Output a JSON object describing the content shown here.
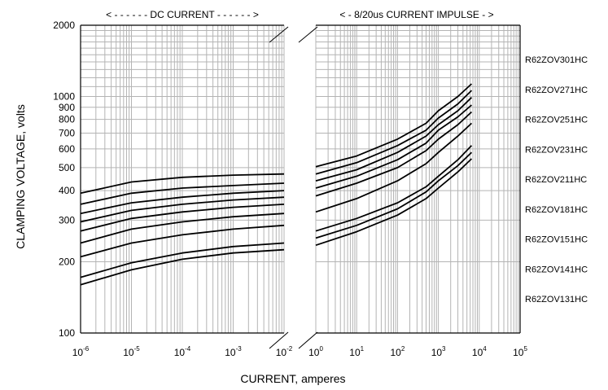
{
  "chart_data": {
    "type": "line",
    "xlabel": "CURRENT, amperes",
    "ylabel": "CLAMPING VOLTAGE, volts",
    "yscale": "log",
    "ylim": [
      100,
      2000
    ],
    "yticks": [
      2000,
      1000,
      900,
      800,
      700,
      600,
      500,
      400,
      300,
      200,
      100
    ],
    "line_color": "#000000",
    "grid_color": "#b4b4b4",
    "regions": [
      {
        "title": "< - - - - - - DC CURRENT - - - - - - >",
        "xscale": "log",
        "xlim": [
          1e-06,
          0.01
        ],
        "ticks": [
          {
            "base": "10",
            "exp": "-6"
          },
          {
            "base": "10",
            "exp": "-5"
          },
          {
            "base": "10",
            "exp": "-4"
          },
          {
            "base": "10",
            "exp": "-3"
          },
          {
            "base": "10",
            "exp": "-2"
          }
        ]
      },
      {
        "title": "< - 8/20us CURRENT IMPULSE - >",
        "xscale": "log",
        "xlim": [
          1,
          100000
        ],
        "ticks": [
          {
            "base": "10",
            "exp": "0"
          },
          {
            "base": "10",
            "exp": "1"
          },
          {
            "base": "10",
            "exp": "2"
          },
          {
            "base": "10",
            "exp": "3"
          },
          {
            "base": "10",
            "exp": "4"
          },
          {
            "base": "10",
            "exp": "5"
          }
        ]
      }
    ],
    "series": [
      {
        "name": "R62ZOV301HC",
        "dc": {
          "x": [
            1e-06,
            1e-05,
            0.0001,
            0.001,
            0.01
          ],
          "y": [
            390,
            435,
            455,
            465,
            470
          ]
        },
        "impulse": {
          "x": [
            1,
            10,
            100,
            500,
            1000,
            3000,
            6500
          ],
          "y": [
            505,
            560,
            660,
            770,
            870,
            1000,
            1130
          ]
        }
      },
      {
        "name": "R62ZOV271HC",
        "dc": {
          "x": [
            1e-06,
            1e-05,
            0.0001,
            0.001,
            0.01
          ],
          "y": [
            350,
            390,
            410,
            420,
            430
          ]
        },
        "impulse": {
          "x": [
            1,
            10,
            100,
            500,
            1000,
            3000,
            6500
          ],
          "y": [
            470,
            525,
            620,
            720,
            810,
            930,
            1060
          ]
        }
      },
      {
        "name": "R62ZOV251HC",
        "dc": {
          "x": [
            1e-06,
            1e-05,
            0.0001,
            0.001,
            0.01
          ],
          "y": [
            320,
            355,
            375,
            390,
            400
          ]
        },
        "impulse": {
          "x": [
            1,
            10,
            100,
            500,
            1000,
            3000,
            6500
          ],
          "y": [
            440,
            490,
            580,
            680,
            760,
            870,
            990
          ]
        }
      },
      {
        "name": "R62ZOV231HC",
        "dc": {
          "x": [
            1e-06,
            1e-05,
            0.0001,
            0.001,
            0.01
          ],
          "y": [
            295,
            330,
            350,
            365,
            375
          ]
        },
        "impulse": {
          "x": [
            1,
            10,
            100,
            500,
            1000,
            3000,
            6500
          ],
          "y": [
            410,
            460,
            540,
            635,
            720,
            820,
            920
          ]
        }
      },
      {
        "name": "R62ZOV211HC",
        "dc": {
          "x": [
            1e-06,
            1e-05,
            0.0001,
            0.001,
            0.01
          ],
          "y": [
            270,
            305,
            325,
            340,
            350
          ]
        },
        "impulse": {
          "x": [
            1,
            10,
            100,
            500,
            1000,
            3000,
            6500
          ],
          "y": [
            380,
            430,
            500,
            590,
            660,
            760,
            860
          ]
        }
      },
      {
        "name": "R62ZOV181HC",
        "dc": {
          "x": [
            1e-06,
            1e-05,
            0.0001,
            0.001,
            0.01
          ],
          "y": [
            240,
            275,
            295,
            310,
            320
          ]
        },
        "impulse": {
          "x": [
            1,
            10,
            100,
            500,
            1000,
            3000,
            6500
          ],
          "y": [
            325,
            370,
            440,
            520,
            580,
            680,
            770
          ]
        }
      },
      {
        "name": "R62ZOV151HC",
        "dc": {
          "x": [
            1e-06,
            1e-05,
            0.0001,
            0.001,
            0.01
          ],
          "y": [
            210,
            240,
            260,
            275,
            285
          ]
        },
        "impulse": {
          "x": [
            1,
            10,
            100,
            500,
            1000,
            3000,
            6500
          ],
          "y": [
            270,
            305,
            355,
            415,
            460,
            540,
            620
          ]
        }
      },
      {
        "name": "R62ZOV141HC",
        "dc": {
          "x": [
            1e-06,
            1e-05,
            0.0001,
            0.001,
            0.01
          ],
          "y": [
            172,
            198,
            218,
            232,
            240
          ]
        },
        "impulse": {
          "x": [
            1,
            10,
            100,
            500,
            1000,
            3000,
            6500
          ],
          "y": [
            252,
            285,
            335,
            395,
            440,
            510,
            580
          ]
        }
      },
      {
        "name": "R62ZOV131HC",
        "dc": {
          "x": [
            1e-06,
            1e-05,
            0.0001,
            0.001,
            0.01
          ],
          "y": [
            160,
            185,
            205,
            218,
            225
          ]
        },
        "impulse": {
          "x": [
            1,
            10,
            100,
            500,
            1000,
            3000,
            6500
          ],
          "y": [
            235,
            268,
            315,
            370,
            410,
            480,
            545
          ]
        }
      }
    ]
  }
}
